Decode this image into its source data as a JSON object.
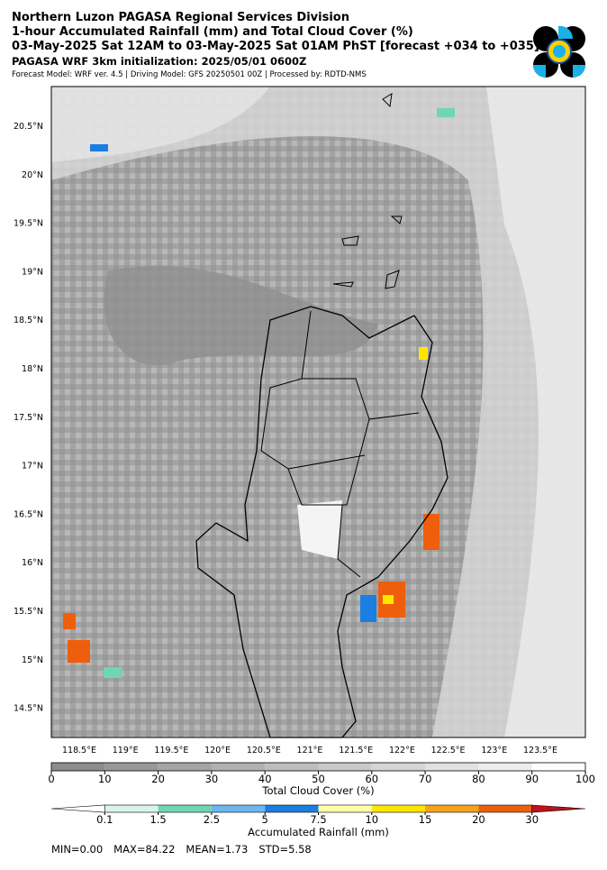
{
  "header": {
    "lines": [
      "Northern Luzon PAGASA Regional Services Division",
      "1-hour Accumulated Rainfall (mm) and Total Cloud Cover (%)",
      "03-May-2025 Sat 12AM to 03-May-2025 Sat 01AM PhST [forecast +034 to +035]",
      "PAGASA WRF 3km initialization: 2025/05/01 0600Z"
    ],
    "subline": "Forecast Model: WRF ver. 4.5 | Driving Model: GFS 20250501 00Z | Processed by: RDTD-NMS"
  },
  "map": {
    "lat_labels": [
      "20.5°N",
      "20°N",
      "19.5°N",
      "19°N",
      "18.5°N",
      "18°N",
      "17.5°N",
      "17°N",
      "16.5°N",
      "16°N",
      "15.5°N",
      "15°N",
      "14.5°N"
    ],
    "lon_labels": [
      "118.5°E",
      "119°E",
      "119.5°E",
      "120°E",
      "120.5°E",
      "121°E",
      "121.5°E",
      "122°E",
      "122.5°E",
      "123°E",
      "123.5°E"
    ]
  },
  "cloud_colorbar": {
    "label": "Total Cloud Cover (%)",
    "ticks": [
      0,
      10,
      20,
      30,
      40,
      50,
      60,
      70,
      80,
      90,
      100
    ],
    "colors": [
      "#8c8c8c",
      "#999999",
      "#a5a5a5",
      "#b1b1b1",
      "#bdbdbd",
      "#c9c9c9",
      "#d5d5d5",
      "#e1e1e1",
      "#ededed",
      "#ffffff"
    ]
  },
  "rain_colorbar": {
    "label": "Accumulated Rainfall (mm)",
    "ticks": [
      0.1,
      1.5,
      2.5,
      5,
      7.5,
      10,
      15,
      20,
      30
    ],
    "colors": [
      "#ffffff",
      "#d8f5ec",
      "#6fd6b4",
      "#6cb6f2",
      "#1c7ee0",
      "#ffffa8",
      "#ffe600",
      "#f7a11c",
      "#ef5e0c",
      "#c0121a"
    ]
  },
  "stats": [
    "MIN=0.00",
    "MAX=84.22",
    "MEAN=1.73",
    "STD=5.58"
  ]
}
